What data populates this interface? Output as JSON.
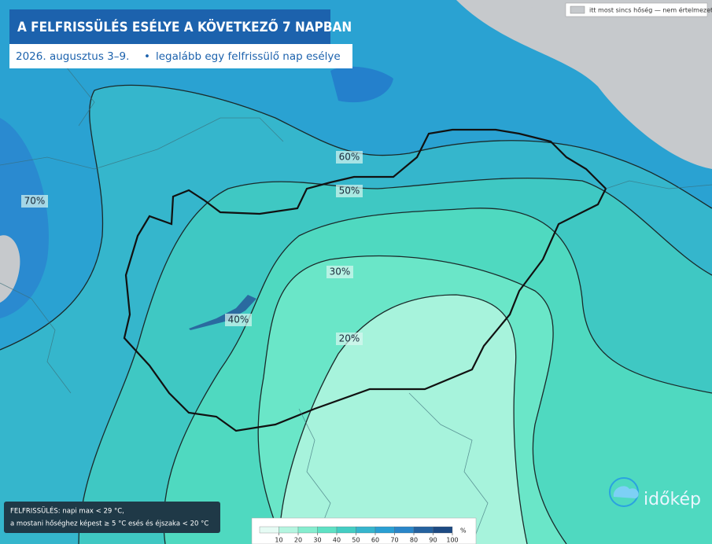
{
  "header": {
    "title": "A FELFRISSÜLÉS ESÉLYE A KÖVETKEZŐ 7 NAPBAN",
    "date": "2026. augusztus 3–9.",
    "description": "legalább egy felfrissülő nap esélye"
  },
  "legend": {
    "no_data": "itt most sincs hőség — nem értelmezett"
  },
  "contour_labels": [
    "70%",
    "60%",
    "50%",
    "40%",
    "30%",
    "20%"
  ],
  "footnote": {
    "line1": "FELFRISSÜLÉS: napi max < 29 °C,",
    "line2": "a mostani hőséghez képest ≥ 5 °C esés és éjszaka < 20 °C"
  },
  "colorbar": {
    "ticks": [
      10,
      20,
      30,
      40,
      50,
      60,
      70,
      80,
      90,
      100
    ],
    "unit": "%",
    "colors": [
      "#e6fbf4",
      "#b5f5e0",
      "#86edcf",
      "#5fe1c4",
      "#44cdc3",
      "#36b5cd",
      "#2a9fd3",
      "#2a86c9",
      "#25629f",
      "#1d4a83"
    ]
  },
  "logo": "időkép"
}
